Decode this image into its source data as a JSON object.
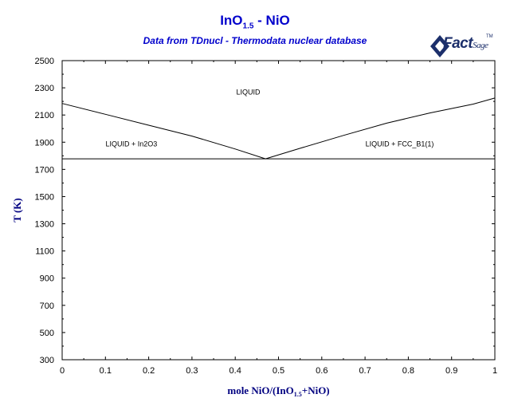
{
  "title": "InO1.5 - NiO",
  "title_parts": {
    "base": "InO",
    "sub": "1.5",
    "rest": " - NiO"
  },
  "subtitle": "Data from TDnucl - Thermodata nuclear database",
  "logo": {
    "text": "Fact",
    "text2": "Sage"
  },
  "colors": {
    "title": "#0000cc",
    "axis_title": "#000080",
    "line": "#000000"
  },
  "chart_data": {
    "type": "line",
    "title": "InO1.5 - NiO",
    "subtitle": "Data from TDnucl - Thermodata nuclear database",
    "xlabel_parts": {
      "pre": "mole NiO/(InO",
      "sub": "1.5",
      "post": "+NiO)"
    },
    "ylabel": "T (K)",
    "xlim": [
      0,
      1
    ],
    "ylim": [
      300,
      2500
    ],
    "xticks": [
      0,
      0.1,
      0.2,
      0.3,
      0.4,
      0.5,
      0.6,
      0.7,
      0.8,
      0.9,
      1
    ],
    "xtick_labels": [
      "0",
      "0.1",
      "0.2",
      "0.3",
      "0.4",
      "0.5",
      "0.6",
      "0.7",
      "0.8",
      "0.9",
      "1"
    ],
    "yticks": [
      300,
      500,
      700,
      900,
      1100,
      1300,
      1500,
      1700,
      1900,
      2100,
      2300,
      2500
    ],
    "ytick_labels": [
      "300",
      "500",
      "700",
      "900",
      "1100",
      "1300",
      "1500",
      "1700",
      "1900",
      "2100",
      "2300",
      "2500"
    ],
    "grid": false,
    "series": [
      {
        "x": [
          0,
          0.1,
          0.2,
          0.3,
          0.4,
          0.47
        ],
        "y": [
          2185,
          2105,
          2025,
          1945,
          1850,
          1778
        ]
      },
      {
        "x": [
          0.47,
          0.55,
          0.65,
          0.75,
          0.85,
          0.95,
          1
        ],
        "y": [
          1778,
          1855,
          1950,
          2040,
          2115,
          2180,
          2225
        ]
      },
      {
        "x": [
          0,
          1
        ],
        "y": [
          1778,
          1778
        ]
      }
    ],
    "labels": [
      {
        "text": "LIQUID",
        "x": 0.43,
        "y": 2250
      },
      {
        "text": "LIQUID + In2O3",
        "x": 0.16,
        "y": 1870
      },
      {
        "text": "LIQUID + FCC_B1(1)",
        "x": 0.78,
        "y": 1870
      }
    ]
  }
}
